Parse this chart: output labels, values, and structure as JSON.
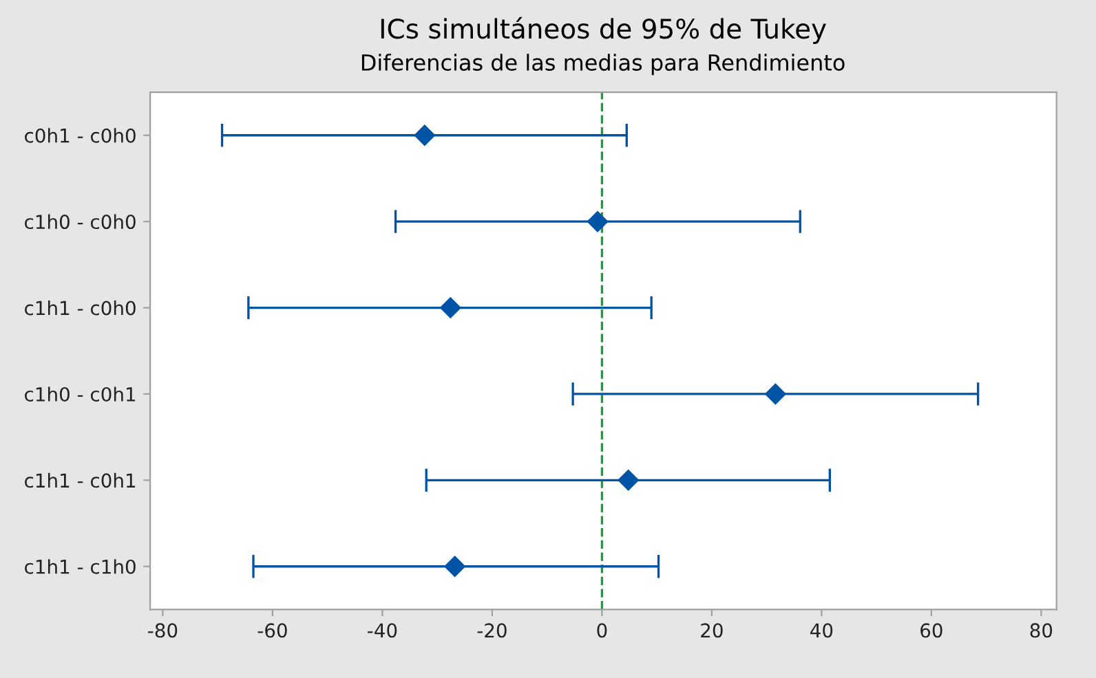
{
  "chart_data": {
    "type": "scatter",
    "title": "ICs simultáneos de 95% de Tukey",
    "subtitle": "Diferencias de las medias para Rendimiento",
    "orientation": "horizontal",
    "categories": [
      "c0h1 - c0h0",
      "c1h0 - c0h0",
      "c1h1 - c0h0",
      "c1h0 - c0h1",
      "c1h1 - c0h1",
      "c1h1 - c1h0"
    ],
    "series": [
      {
        "color": "#0054a6",
        "values": [
          -32.3,
          -0.8,
          -27.6,
          31.6,
          4.8,
          -26.8
        ],
        "errors": [
          [
            -69.2,
            4.5
          ],
          [
            -37.6,
            36.1
          ],
          [
            -64.4,
            9.0
          ],
          [
            -5.3,
            68.5
          ],
          [
            -32.0,
            41.5
          ],
          [
            -63.5,
            10.3
          ]
        ]
      }
    ],
    "xlim": [
      -82.3,
      82.8
    ],
    "xticks": [
      -80,
      -60,
      -40,
      -20,
      0,
      20,
      40,
      60,
      80
    ],
    "marker": "diamond",
    "ref_lines": [
      {
        "axis": "x",
        "value": 0,
        "color": "#1a9e3c",
        "line_style": "dashed"
      }
    ],
    "grid": false,
    "legend": false
  }
}
